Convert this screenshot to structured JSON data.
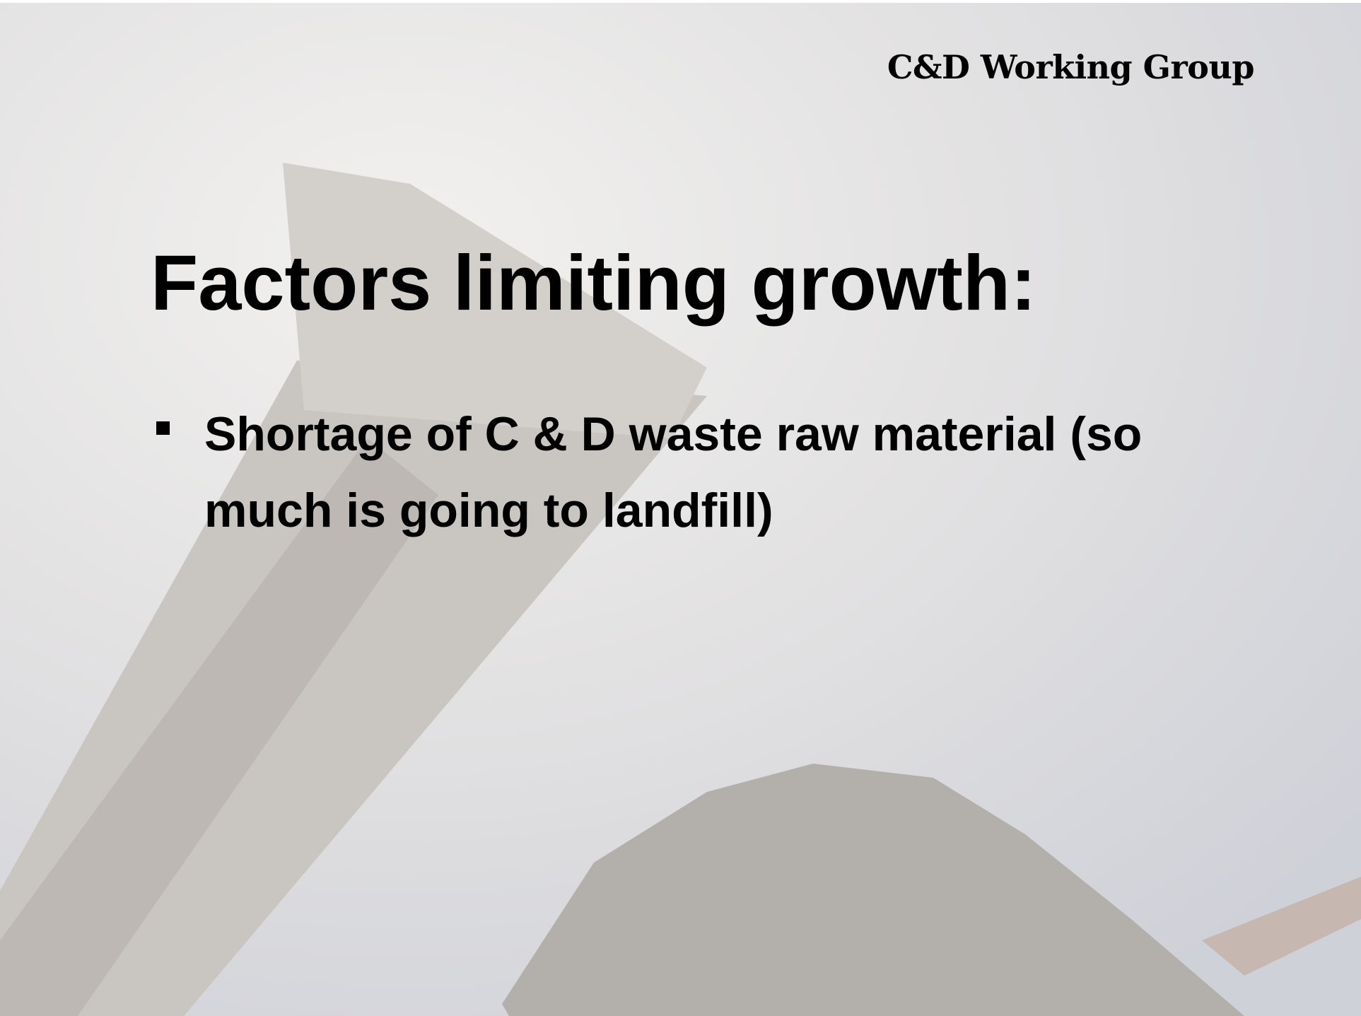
{
  "header": {
    "title": "C&D Working Group"
  },
  "slide": {
    "title": "Factors limiting growth:",
    "bullets": [
      "Shortage of C & D waste raw material (so much is going to landfill)"
    ]
  }
}
